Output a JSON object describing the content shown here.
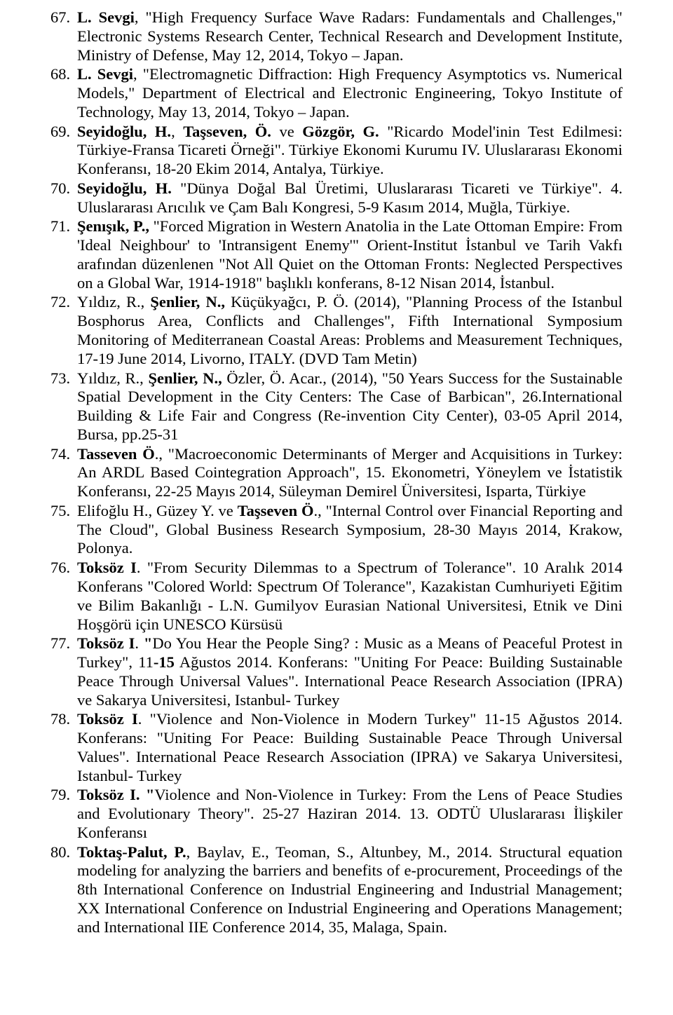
{
  "document": {
    "font_family": "Times New Roman",
    "font_size_pt": 17,
    "text_color": "#000000",
    "background_color": "#ffffff",
    "text_align": "justify",
    "start_number": 67
  },
  "refs": [
    {
      "n": 67,
      "segments": [
        {
          "t": "L. Sevgi",
          "b": true
        },
        {
          "t": ", \"High Frequency Surface Wave Radars: Fundamentals and Challenges,\" Electronic Systems Research Center, Technical Research and Development Institute, Ministry of Defense, May 12, 2014, Tokyo – Japan."
        }
      ]
    },
    {
      "n": 68,
      "segments": [
        {
          "t": "L. Sevgi",
          "b": true
        },
        {
          "t": ", \"Electromagnetic Diffraction: High Frequency Asymptotics vs. Numerical Models,\" Department of Electrical and Electronic Engineering, Tokyo Institute of Technology, May 13, 2014, Tokyo – Japan."
        }
      ]
    },
    {
      "n": 69,
      "segments": [
        {
          "t": "Seyidoğlu, H.",
          "b": true
        },
        {
          "t": ", "
        },
        {
          "t": "Taşseven, Ö.",
          "b": true
        },
        {
          "t": " ve "
        },
        {
          "t": "Gözgör, G.",
          "b": true
        },
        {
          "t": " \"Ricardo Model'inin Test Edilmesi: Türkiye-Fransa Ticareti Örneği\". Türkiye Ekonomi Kurumu IV. Uluslararası Ekonomi Konferansı, 18-20 Ekim 2014, Antalya, Türkiye."
        }
      ]
    },
    {
      "n": 70,
      "segments": [
        {
          "t": "Seyidoğlu, H.",
          "b": true
        },
        {
          "t": " \"Dünya Doğal Bal Üretimi, Uluslararası Ticareti ve Türkiye\". 4. Uluslararası Arıcılık ve Çam Balı Kongresi, 5-9 Kasım 2014, Muğla, Türkiye."
        }
      ]
    },
    {
      "n": 71,
      "segments": [
        {
          "t": "Şenışık, P.,",
          "b": true
        },
        {
          "t": " \"Forced Migration in Western Anatolia in the Late Ottoman Empire: From 'Ideal Neighbour' to 'Intransigent Enemy'\" Orient-Institut İstanbul ve Tarih Vakfı arafından düzenlenen \"Not All Quiet on the Ottoman Fronts: Neglected Perspectives on a Global War, 1914-1918\" başlıklı konferans, 8-12 Nisan 2014, İstanbul."
        }
      ]
    },
    {
      "n": 72,
      "segments": [
        {
          "t": "Yıldız, R., "
        },
        {
          "t": "Şenlier,  N.,",
          "b": true
        },
        {
          "t": " Küçükyağcı, P. Ö. (2014), \"Planning Process of the Istanbul Bosphorus Area, Conflicts and Challenges\", Fifth International Symposium Monitoring of Mediterranean Coastal Areas: Problems and Measurement Techniques, 17-19 June 2014, Livorno, ITALY. (DVD Tam Metin)"
        }
      ]
    },
    {
      "n": 73,
      "segments": [
        {
          "t": "Yıldız, R., "
        },
        {
          "t": "Şenlier, N.,",
          "b": true
        },
        {
          "t": " Özler, Ö. Acar., (2014), \"50 Years Success for the Sustainable Spatial Development in the City Centers: The Case of Barbican\", 26.International Building & Life Fair and Congress (Re-invention City Center), 03-05 April 2014, Bursa, pp.25-31"
        }
      ]
    },
    {
      "n": 74,
      "segments": [
        {
          "t": "Tasseven Ö",
          "b": true
        },
        {
          "t": "., \"Macroeconomic Determinants of Merger and Acquisitions in Turkey: An ARDL Based Cointegration Approach\", 15. Ekonometri, Yöneylem ve İstatistik Konferansı, 22-25 Mayıs 2014, Süleyman Demirel Üniversitesi, Isparta, Türkiye"
        }
      ]
    },
    {
      "n": 75,
      "segments": [
        {
          "t": "Elifoğlu H., Güzey Y. ve "
        },
        {
          "t": "Taşseven Ö",
          "b": true
        },
        {
          "t": "., \"Internal Control over Financial Reporting and The Cloud\", Global Business Research Symposium,  28-30 Mayıs 2014, Krakow, Polonya."
        }
      ]
    },
    {
      "n": 76,
      "segments": [
        {
          "t": "Toksöz I",
          "b": true
        },
        {
          "t": ". \"From Security Dilemmas to a Spectrum of Tolerance\". 10 Aralık 2014 Konferans \"Colored World: Spectrum Of Tolerance\", Kazakistan Cumhuriyeti Eğitim ve Bilim Bakanlığı - L.N. Gumilyov Eurasian  National  Universitesi, Etnik ve Dini Hoşgörü için UNESCO Kürsüsü"
        }
      ]
    },
    {
      "n": 77,
      "segments": [
        {
          "t": "Toksöz I",
          "b": true
        },
        {
          "t": ". "
        },
        {
          "t": "\"",
          "b": true
        },
        {
          "t": "Do You Hear the People Sing? : Music as a Means of Peaceful Protest in Turkey\", 11"
        },
        {
          "t": "-15",
          "b": true
        },
        {
          "t": " Ağustos 2014. Konferans: \"Uniting For Peace: Building Sustainable Peace Through Universal Values\".  International Peace Research Association (IPRA) ve Sakarya Universitesi, Istanbul- Turkey"
        }
      ]
    },
    {
      "n": 78,
      "segments": [
        {
          "t": "Toksöz I",
          "b": true
        },
        {
          "t": ". \"Violence and Non-Violence in Modern Turkey\" 11-15 Ağustos 2014. Konferans: \"Uniting For Peace: Building Sustainable Peace Through Universal Values\".  International Peace Research Association (IPRA) ve Sakarya Universitesi, Istanbul- Turkey"
        }
      ]
    },
    {
      "n": 79,
      "segments": [
        {
          "t": "Toksöz I. \"",
          "b": true
        },
        {
          "t": "Violence and Non-Violence in Turkey: From the Lens of Peace Studies and Evolutionary Theory\". 25-27 Haziran 2014. 13. ODTÜ Uluslararası İlişkiler Konferansı"
        }
      ]
    },
    {
      "n": 80,
      "segments": [
        {
          "t": "Toktaş-Palut, P.",
          "b": true
        },
        {
          "t": ", Baylav, E., Teoman, S., Altunbey, M., 2014. Structural equation modeling for analyzing the barriers and benefits of e-procurement, Proceedings of the 8th International Conference on Industrial Engineering and Industrial Management; XX International Conference on Industrial Engineering and Operations Management; and International IIE Conference 2014, 35, Malaga, Spain."
        }
      ]
    }
  ]
}
